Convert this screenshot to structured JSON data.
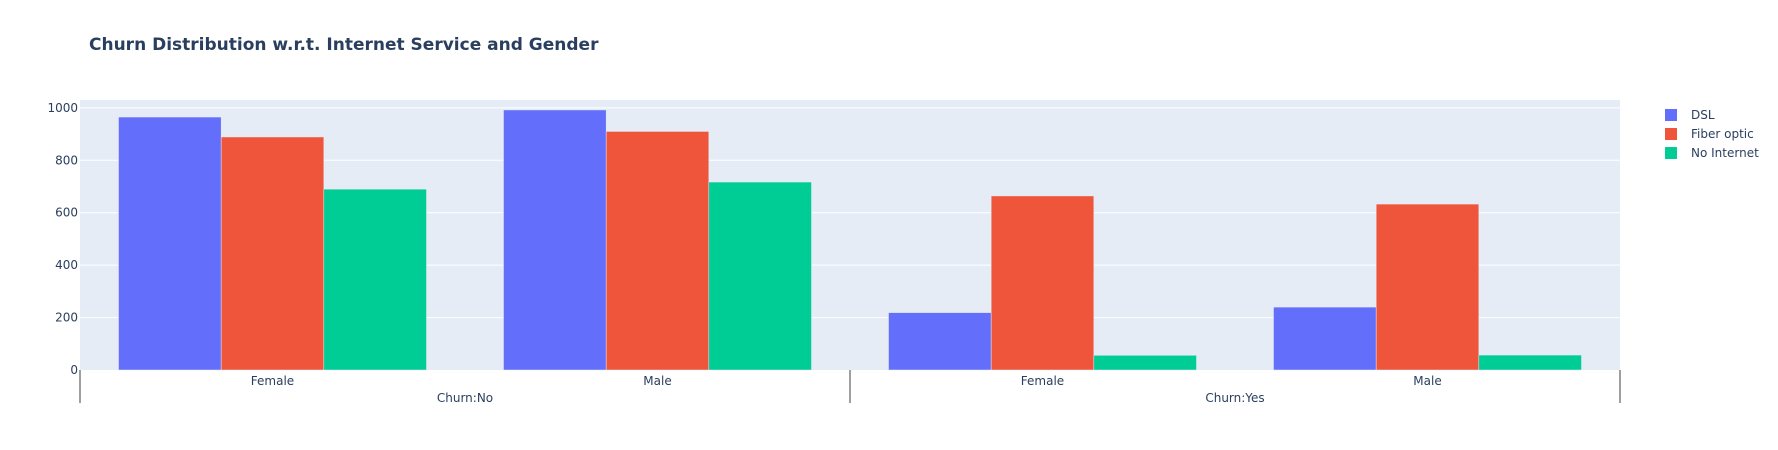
{
  "chart_data": {
    "type": "bar",
    "title": "Churn Distribution w.r.t. Internet Service and Gender",
    "groups": [
      {
        "label": "Churn:No",
        "categories": [
          "Female",
          "Male"
        ]
      },
      {
        "label": "Churn:Yes",
        "categories": [
          "Female",
          "Male"
        ]
      }
    ],
    "series": [
      {
        "name": "DSL",
        "color": "#636efa",
        "values": [
          965,
          992,
          219,
          240
        ]
      },
      {
        "name": "Fiber optic",
        "color": "#ef553b",
        "values": [
          889,
          910,
          664,
          633
        ]
      },
      {
        "name": "No Internet",
        "color": "#00cc96",
        "values": [
          690,
          717,
          56,
          57
        ]
      }
    ],
    "y_ticks": [
      "0",
      "200",
      "400",
      "600",
      "800",
      "1000"
    ],
    "ylim": [
      0,
      1000
    ],
    "legend_position": "top-right",
    "grid": true
  }
}
